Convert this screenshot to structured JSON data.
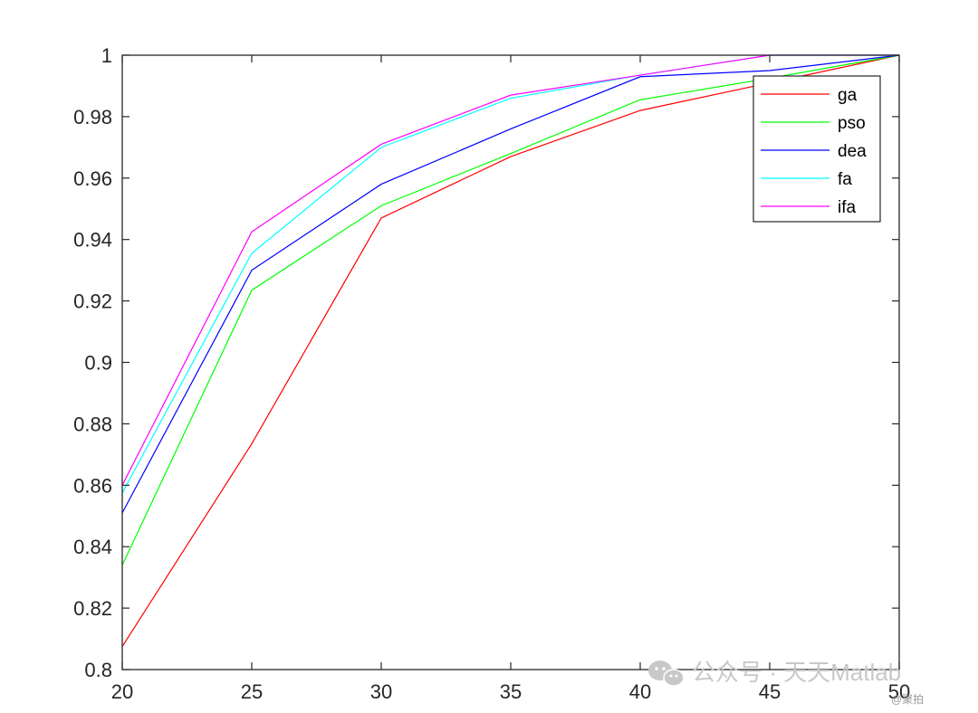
{
  "chart_data": {
    "type": "line",
    "title": "",
    "xlabel": "",
    "ylabel": "",
    "x": [
      20,
      25,
      30,
      35,
      40,
      45,
      50
    ],
    "xlim": [
      20,
      50
    ],
    "ylim": [
      0.8,
      1.0
    ],
    "xticks": [
      "20",
      "25",
      "30",
      "35",
      "40",
      "45",
      "50"
    ],
    "yticks": [
      "0.8",
      "0.82",
      "0.84",
      "0.86",
      "0.88",
      "0.9",
      "0.92",
      "0.94",
      "0.96",
      "0.98",
      "1"
    ],
    "grid": false,
    "legend_position": "top-right",
    "series": [
      {
        "name": "ga",
        "color": "#ff0000",
        "values": [
          0.8075,
          0.8735,
          0.947,
          0.967,
          0.982,
          0.991,
          1.0
        ]
      },
      {
        "name": "pso",
        "color": "#00ff00",
        "values": [
          0.834,
          0.9235,
          0.951,
          0.968,
          0.9855,
          0.9925,
          1.0
        ]
      },
      {
        "name": "dea",
        "color": "#0000ff",
        "values": [
          0.851,
          0.93,
          0.958,
          0.976,
          0.993,
          0.995,
          1.0
        ]
      },
      {
        "name": "fa",
        "color": "#00ffff",
        "values": [
          0.8575,
          0.9355,
          0.97,
          0.986,
          0.9935,
          1.0,
          1.0
        ]
      },
      {
        "name": "ifa",
        "color": "#ff00ff",
        "values": [
          0.86,
          0.9425,
          0.971,
          0.987,
          0.9935,
          1.0,
          1.0
        ]
      }
    ]
  },
  "watermark": {
    "text": "公众号 · 天天Matlab",
    "icon": "wechat-icon",
    "small_text": "@聚拍"
  }
}
